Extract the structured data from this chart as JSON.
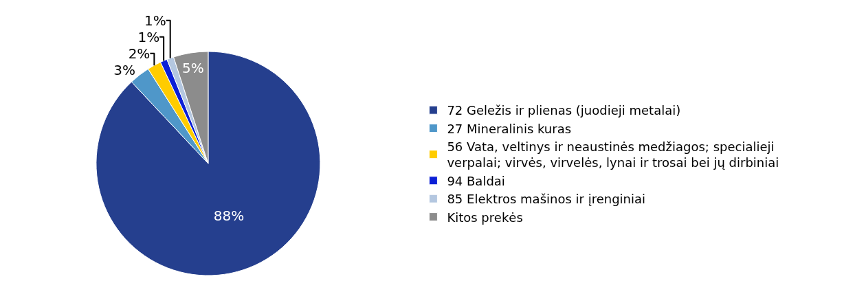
{
  "chart_data": {
    "type": "pie",
    "categories": [
      "72 Geležis ir plienas (juodieji metalai)",
      "27 Mineralinis kuras",
      "56 Vata, veltinys ir neaustinės medžiagos; specialieji verpalai; virvės, virvelės, lynai ir trosai bei jų dirbiniai",
      "94 Baldai",
      "85 Elektros mašinos ir įrenginiai",
      "Kitos prekės"
    ],
    "values": [
      88,
      3,
      2,
      1,
      1,
      5
    ],
    "value_labels": [
      "88%",
      "3%",
      "2%",
      "1%",
      "1%",
      "5%"
    ],
    "colors": [
      "#253f8e",
      "#4f97c9",
      "#ffcc00",
      "#0b1fd6",
      "#b4c7e0",
      "#8c8c8c"
    ],
    "legend": "right"
  }
}
